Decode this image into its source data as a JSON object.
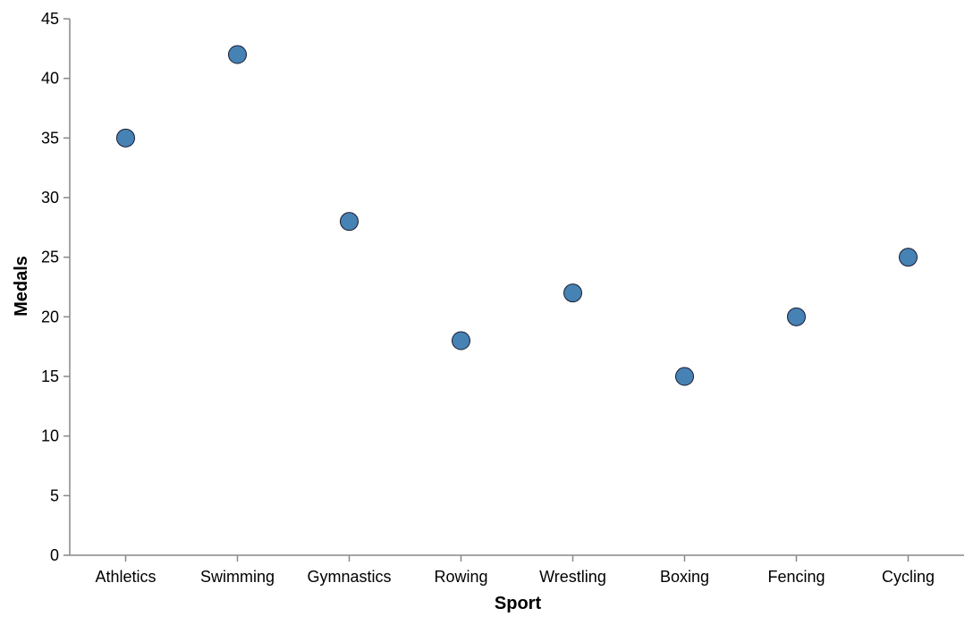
{
  "chart_data": {
    "type": "scatter",
    "title": "",
    "xlabel": "Sport",
    "ylabel": "Medals",
    "categories": [
      "Athletics",
      "Swimming",
      "Gymnastics",
      "Rowing",
      "Wrestling",
      "Boxing",
      "Fencing",
      "Cycling"
    ],
    "values": [
      35,
      42,
      28,
      18,
      22,
      15,
      20,
      25
    ],
    "ylim": [
      0,
      45
    ],
    "yticks": [
      0,
      5,
      10,
      15,
      20,
      25,
      30,
      35,
      40,
      45
    ],
    "grid": false,
    "legend": "none",
    "colors": {
      "point_fill": "#4682b4",
      "point_stroke": "#1a1a2e",
      "axis": "#888888"
    }
  }
}
